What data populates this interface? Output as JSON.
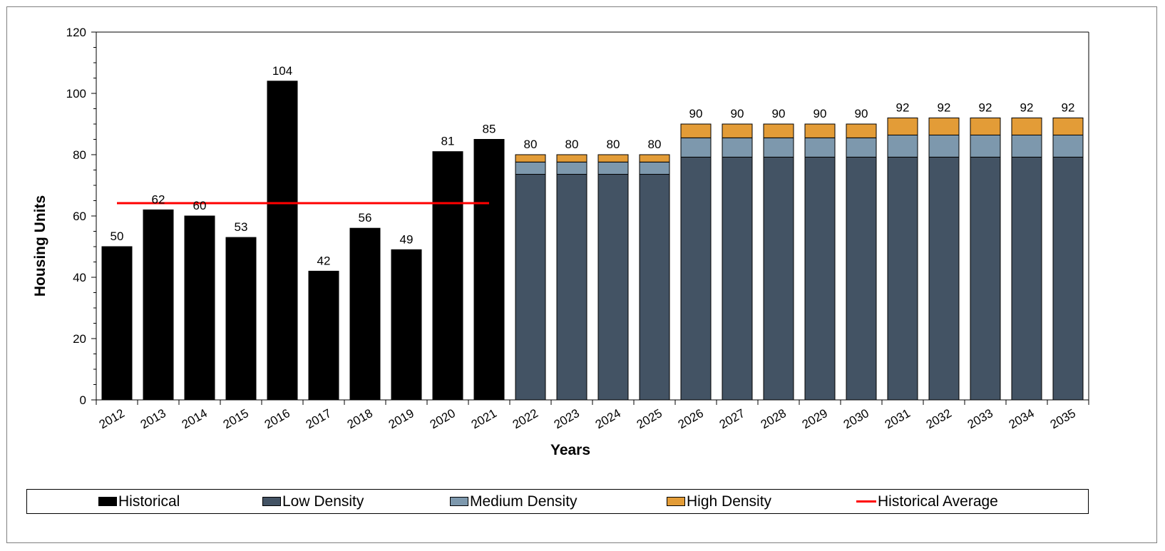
{
  "chart_data": {
    "type": "bar",
    "stacked": true,
    "title": "",
    "xlabel": "Years",
    "ylabel": "Housing Units",
    "ylim": [
      0,
      120
    ],
    "yticks": [
      0,
      20,
      40,
      60,
      80,
      100,
      120
    ],
    "grid": false,
    "legend_position": "bottom",
    "categories": [
      "2012",
      "2013",
      "2014",
      "2015",
      "2016",
      "2017",
      "2018",
      "2019",
      "2020",
      "2021",
      "2022",
      "2023",
      "2024",
      "2025",
      "2026",
      "2027",
      "2028",
      "2029",
      "2030",
      "2031",
      "2032",
      "2033",
      "2034",
      "2035"
    ],
    "series": [
      {
        "name": "Historical",
        "color": "#000000",
        "values": [
          50,
          62,
          60,
          53,
          104,
          42,
          56,
          49,
          81,
          85,
          null,
          null,
          null,
          null,
          null,
          null,
          null,
          null,
          null,
          null,
          null,
          null,
          null,
          null
        ]
      },
      {
        "name": "Low Density",
        "color": "#435364",
        "values": [
          null,
          null,
          null,
          null,
          null,
          null,
          null,
          null,
          null,
          null,
          73.6,
          73.6,
          73.6,
          73.6,
          79.2,
          79.2,
          79.2,
          79.2,
          79.2,
          79.2,
          79.2,
          79.2,
          79.2,
          79.2
        ]
      },
      {
        "name": "Medium Density",
        "color": "#7d98ad",
        "values": [
          null,
          null,
          null,
          null,
          null,
          null,
          null,
          null,
          null,
          null,
          4,
          4,
          4,
          4,
          6.3,
          6.3,
          6.3,
          6.3,
          6.3,
          7.2,
          7.2,
          7.2,
          7.2,
          7.2
        ]
      },
      {
        "name": "High Density",
        "color": "#e39c37",
        "values": [
          null,
          null,
          null,
          null,
          null,
          null,
          null,
          null,
          null,
          null,
          2.4,
          2.4,
          2.4,
          2.4,
          4.5,
          4.5,
          4.5,
          4.5,
          4.5,
          5.6,
          5.6,
          5.6,
          5.6,
          5.6
        ]
      }
    ],
    "totals": [
      "50",
      "62",
      "60",
      "53",
      "104",
      "42",
      "56",
      "49",
      "81",
      "85",
      "80",
      "80",
      "80",
      "80",
      "90",
      "90",
      "90",
      "90",
      "90",
      "92",
      "92",
      "92",
      "92",
      "92"
    ],
    "reference_line": {
      "name": "Historical Average",
      "color": "#ff0000",
      "value": 64.2,
      "from": "2012",
      "to": "2021"
    }
  }
}
